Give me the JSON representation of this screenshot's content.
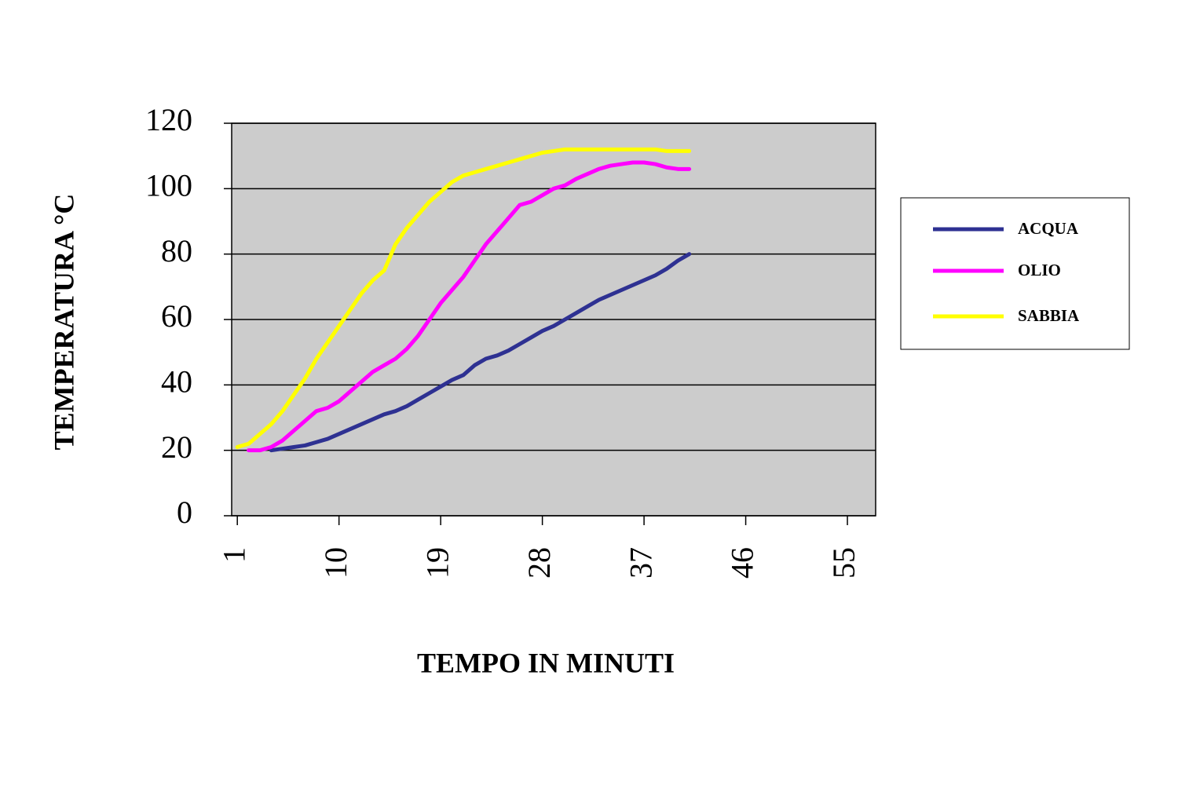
{
  "chart_data": {
    "type": "line",
    "x_label": "TEMPO IN MINUTI",
    "y_label": "TEMPERATURA °C",
    "x": [
      1,
      2,
      3,
      4,
      5,
      6,
      7,
      8,
      9,
      10,
      11,
      12,
      13,
      14,
      15,
      16,
      17,
      18,
      19,
      20,
      21,
      22,
      23,
      24,
      25,
      26,
      27,
      28,
      29,
      30,
      31,
      32,
      33,
      34,
      35,
      36,
      37,
      38,
      39,
      40,
      41
    ],
    "series": [
      {
        "name": "ACQUA",
        "color": "#2e3192",
        "values": [
          null,
          null,
          null,
          20,
          20.5,
          21,
          21.5,
          22.5,
          23.5,
          25,
          26.5,
          28,
          29.5,
          31,
          32,
          33.5,
          35.5,
          37.5,
          39.5,
          41.5,
          43,
          46,
          48,
          49,
          50.5,
          52.5,
          54.5,
          56.5,
          58,
          60,
          62,
          64,
          66,
          67.5,
          69,
          70.5,
          72,
          73.5,
          75.5,
          78,
          80
        ]
      },
      {
        "name": "OLIO",
        "color": "#ff00ff",
        "values": [
          null,
          20,
          20,
          21,
          23,
          26,
          29,
          32,
          33,
          35,
          38,
          41,
          44,
          46,
          48,
          51,
          55,
          60,
          65,
          69,
          73,
          78,
          83,
          87,
          91,
          95,
          96,
          98,
          100,
          101,
          103,
          104.5,
          106,
          107,
          107.5,
          108,
          108,
          107.5,
          106.5,
          106,
          106
        ]
      },
      {
        "name": "SABBIA",
        "color": "#ffff00",
        "values": [
          21,
          22,
          25,
          28,
          32,
          37,
          42,
          48,
          53,
          58,
          63,
          68,
          72,
          75,
          83,
          88,
          92,
          96,
          99,
          102,
          104,
          105,
          106,
          107,
          108,
          109,
          110,
          111,
          111.5,
          112,
          112,
          112,
          112,
          112,
          112,
          112,
          112,
          112,
          111.5,
          111.5,
          111.5
        ]
      }
    ],
    "xlim": [
      0.5,
      57.5
    ],
    "xticks": [
      1,
      10,
      19,
      28,
      37,
      46,
      55
    ],
    "ylim": [
      0,
      120
    ],
    "yticks": [
      0,
      20,
      40,
      60,
      80,
      100,
      120
    ],
    "grid": true,
    "legend": "right",
    "plot_background": "#cccccc"
  }
}
